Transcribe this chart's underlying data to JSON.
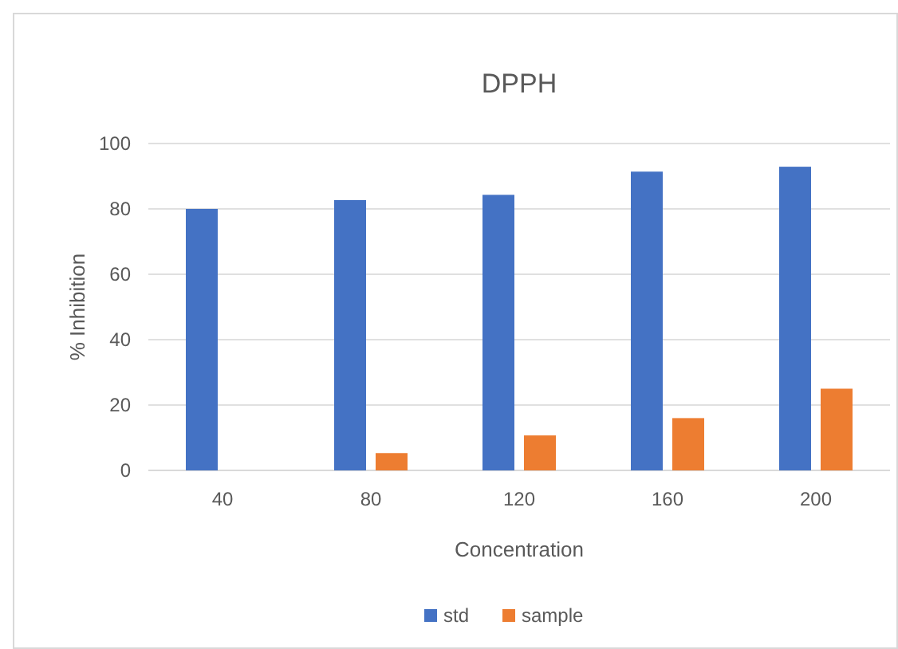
{
  "chart_data": {
    "type": "bar",
    "title": "DPPH",
    "xlabel": "Concentration",
    "ylabel": "% Inhibition",
    "categories": [
      "40",
      "80",
      "120",
      "160",
      "200"
    ],
    "series": [
      {
        "name": "std",
        "color": "#4472c4",
        "values": [
          80,
          82.7,
          84.3,
          91.4,
          92.9
        ]
      },
      {
        "name": "sample",
        "color": "#ed7d31",
        "values": [
          null,
          5.3,
          10.7,
          16,
          25
        ]
      }
    ],
    "ylim": [
      0,
      100
    ],
    "yticks": [
      0,
      20,
      40,
      60,
      80,
      100
    ],
    "grid": "y",
    "legend": "bottom"
  }
}
